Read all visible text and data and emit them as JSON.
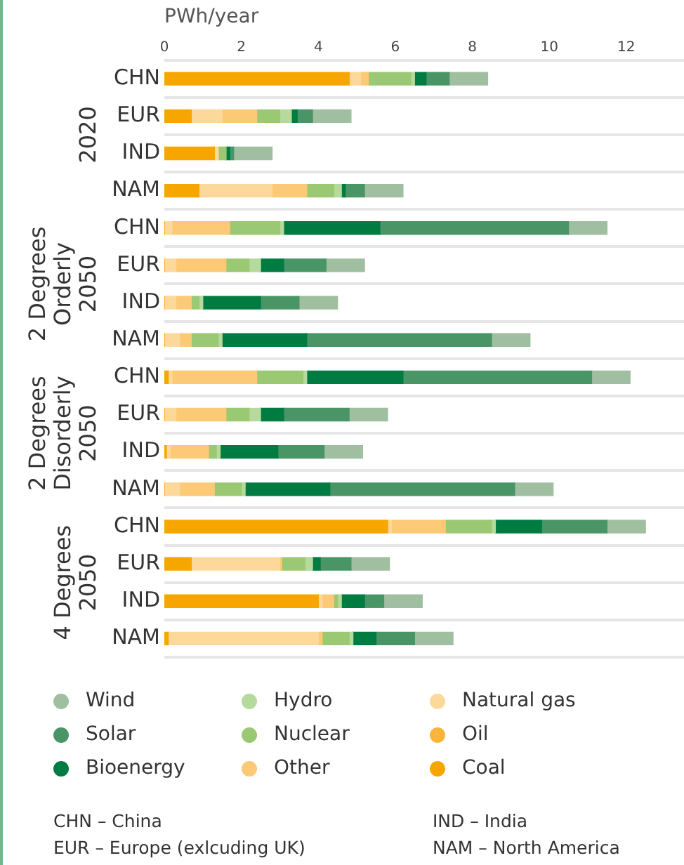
{
  "chart_data": {
    "type": "bar",
    "orientation": "horizontal",
    "stacked": true,
    "xlabel": "PWh/year",
    "categories": [
      "CHN",
      "EUR",
      "IND",
      "NAM",
      "CHN",
      "EUR",
      "IND",
      "NAM",
      "CHN",
      "EUR",
      "IND",
      "NAM",
      "CHN",
      "EUR",
      "IND",
      "NAM"
    ],
    "series": [
      {
        "name": "Coal",
        "color": "#f7a600",
        "values": [
          4.8,
          0.7,
          1.3,
          0.9,
          0,
          0,
          0,
          0,
          0.1,
          0,
          0.05,
          0,
          5.8,
          0.7,
          4.0,
          0.1
        ]
      },
      {
        "name": "Oil",
        "color": "#fbb43a",
        "values": [
          0,
          0,
          0,
          0,
          0,
          0,
          0,
          0,
          0,
          0,
          0,
          0,
          0,
          0,
          0,
          0
        ]
      },
      {
        "name": "Natural gas",
        "color": "#fdd89b",
        "values": [
          0.3,
          0.8,
          0.1,
          1.9,
          0.2,
          0.3,
          0.3,
          0.4,
          0.1,
          0.3,
          0.1,
          0.4,
          0.1,
          2.3,
          0.1,
          3.9
        ]
      },
      {
        "name": "Other",
        "color": "#fcc977",
        "values": [
          0.2,
          0.9,
          0,
          0.9,
          1.5,
          1.3,
          0.4,
          0.3,
          2.2,
          1.3,
          1.0,
          0.9,
          1.4,
          0.05,
          0.3,
          0.1
        ]
      },
      {
        "name": "Nuclear",
        "color": "#9bc873",
        "values": [
          1.1,
          0.6,
          0.2,
          0.7,
          1.3,
          0.6,
          0.2,
          0.7,
          1.2,
          0.6,
          0.2,
          0.7,
          1.2,
          0.6,
          0.1,
          0.7
        ]
      },
      {
        "name": "Hydro",
        "color": "#b6d99c",
        "values": [
          0.1,
          0.3,
          0,
          0.2,
          0.1,
          0.3,
          0.1,
          0.1,
          0.1,
          0.3,
          0.1,
          0.1,
          0.1,
          0.2,
          0.1,
          0.1
        ]
      },
      {
        "name": "Bioenergy",
        "color": "#007c42",
        "values": [
          0.3,
          0.15,
          0.1,
          0.1,
          2.5,
          0.6,
          1.5,
          2.2,
          2.5,
          0.6,
          1.5,
          2.2,
          1.2,
          0.2,
          0.6,
          0.6
        ]
      },
      {
        "name": "Solar",
        "color": "#4a9566",
        "values": [
          0.6,
          0.4,
          0.1,
          0.5,
          4.9,
          1.1,
          1.0,
          4.8,
          4.9,
          1.7,
          1.2,
          4.8,
          1.7,
          0.8,
          0.5,
          1.0
        ]
      },
      {
        "name": "Wind",
        "color": "#a0bfa0",
        "values": [
          1.0,
          1.0,
          1.0,
          1.0,
          1.0,
          1.0,
          1.0,
          1.0,
          1.0,
          1.0,
          1.0,
          1.0,
          1.0,
          1.0,
          1.0,
          1.0
        ]
      }
    ],
    "xlim": [
      0,
      13.5
    ],
    "xticks": [
      0,
      2,
      4,
      6,
      8,
      10,
      12
    ],
    "grid": "y",
    "legend": "bottom",
    "annotations": [
      "2020",
      "2 Degrees Orderly",
      "2050",
      "2 Degrees Disorderly",
      "2050",
      "4 Degrees",
      "2050",
      "CHN – China",
      "IND – India",
      "EUR – Europe (exlcuding UK)",
      "NAM – North America"
    ]
  }
}
